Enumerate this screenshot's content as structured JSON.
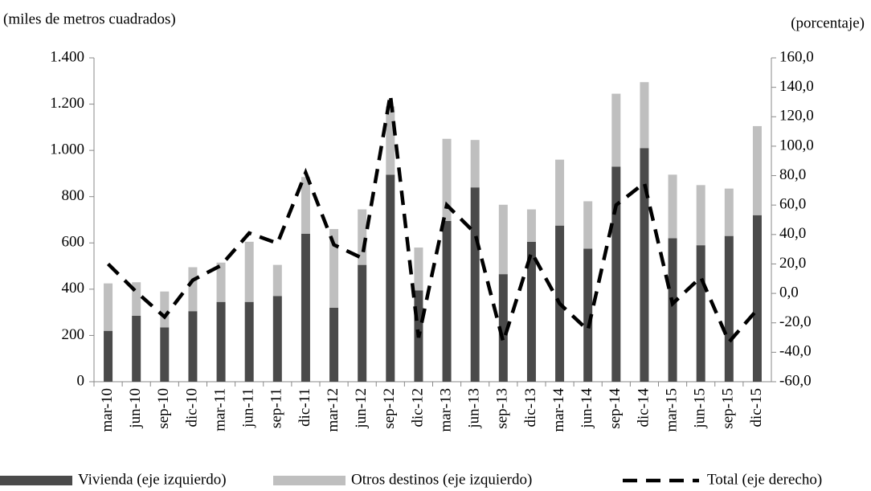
{
  "chart_data": {
    "type": "bar-line",
    "y_label": "(miles  de metros cuadrados)",
    "y2_label": "(porcentaje)",
    "categories": [
      "mar-10",
      "jun-10",
      "sep-10",
      "dic-10",
      "mar-11",
      "jun-11",
      "sep-11",
      "dic-11",
      "mar-12",
      "jun-12",
      "sep-12",
      "dic-12",
      "mar-13",
      "jun-13",
      "sep-13",
      "dic-13",
      "mar-14",
      "jun-14",
      "sep-14",
      "dic-14",
      "mar-15",
      "jun-15",
      "sep-15",
      "dic-15"
    ],
    "series": [
      {
        "name": "Vivienda (eje izquierdo)",
        "type": "bar",
        "color": "#4a4a4a",
        "values": [
          220,
          285,
          235,
          305,
          345,
          345,
          370,
          640,
          320,
          505,
          895,
          395,
          695,
          840,
          465,
          605,
          675,
          575,
          930,
          1010,
          620,
          590,
          630,
          720
        ]
      },
      {
        "name": "Otros destinos (eje izquierdo)",
        "type": "bar",
        "color": "#bfbfbf",
        "values": [
          205,
          145,
          155,
          190,
          170,
          260,
          135,
          245,
          340,
          240,
          295,
          185,
          355,
          205,
          300,
          140,
          285,
          205,
          315,
          285,
          275,
          260,
          205,
          385
        ]
      },
      {
        "name": "Total (eje derecho)",
        "type": "line",
        "axis": "y2",
        "color": "#000000",
        "values": [
          20,
          1,
          -16,
          9,
          19,
          41,
          34,
          82,
          33,
          24,
          135,
          -30,
          60,
          41,
          -33,
          28,
          -7,
          -25,
          60,
          75,
          -7,
          11,
          -33,
          -11
        ]
      }
    ],
    "ylim": [
      0,
      1400
    ],
    "yticks": [
      0,
      200,
      400,
      600,
      800,
      {
        "value": 1000,
        "label": "1.000"
      },
      {
        "value": 1200,
        "label": "1.200"
      },
      {
        "value": 1400,
        "label": "1.400"
      }
    ],
    "y2lim": [
      -60,
      160
    ],
    "y2ticks": [
      {
        "value": -60,
        "label": "-60,0"
      },
      {
        "value": -40,
        "label": "-40,0"
      },
      {
        "value": -20,
        "label": "-20,0"
      },
      {
        "value": 0,
        "label": "0,0"
      },
      {
        "value": 20,
        "label": "20,0"
      },
      {
        "value": 40,
        "label": "40,0"
      },
      {
        "value": 60,
        "label": "60,0"
      },
      {
        "value": 80,
        "label": "80,0"
      },
      {
        "value": 100,
        "label": "100,0"
      },
      {
        "value": 120,
        "label": "120,0"
      },
      {
        "value": 140,
        "label": "140,0"
      },
      {
        "value": 160,
        "label": "160,0"
      }
    ]
  }
}
